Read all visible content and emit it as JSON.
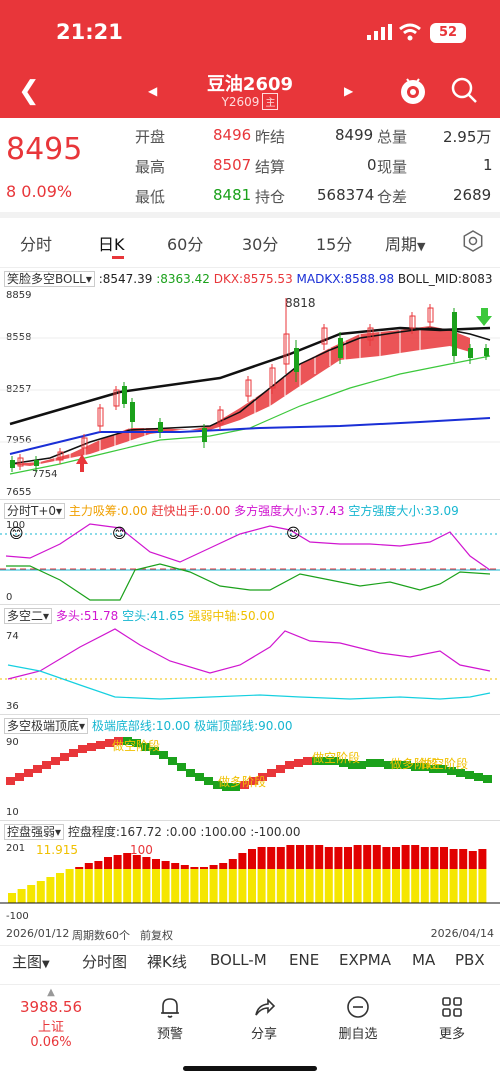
{
  "status": {
    "time": "21:21",
    "battery": "52"
  },
  "header": {
    "title": "豆油2609",
    "code": "Y2609",
    "main_tag": "主"
  },
  "quote": {
    "price": "8495",
    "change": "8 0.09%",
    "rows": [
      {
        "l1": "开盘",
        "v1": "8496",
        "l2": "昨结",
        "v2": "8499",
        "l3": "总量",
        "v3": "2.95万"
      },
      {
        "l1": "最高",
        "v1": "8507",
        "l2": "结算",
        "v2": "0",
        "l3": "现量",
        "v3": "1"
      },
      {
        "l1": "最低",
        "v1": "8481",
        "l2": "持仓",
        "v2": "568374",
        "l3": "仓差",
        "v3": "2689"
      }
    ],
    "colors": {
      "up": "#e8363a",
      "down": "#1ba11b"
    }
  },
  "tabs": [
    "分时",
    "日K",
    "60分",
    "30分",
    "15分",
    "周期"
  ],
  "active_tab": "日K",
  "main_chart": {
    "indicator_name": "笑脸多空BOLL",
    "readouts": [
      ":8547.39",
      ":8363.42",
      "DKX:8575.53",
      "MADKX:8588.98",
      "BOLL_MID:8083"
    ],
    "y_ticks": [
      "8859",
      "8558",
      "8257",
      "7956",
      "7655"
    ],
    "annotations": {
      "high": "8818",
      "low": "7754"
    }
  },
  "panel2": {
    "name": "分时T+0",
    "readouts": [
      "主力吸筹:0.00",
      "赶快出手:0.00",
      "多方强度大小:37.43",
      "空方强度大小:33.09"
    ],
    "y_ticks": [
      "100",
      "0"
    ]
  },
  "panel3": {
    "name": "多空二",
    "readouts": [
      "多头:51.78",
      "空头:41.65",
      "强弱中轴:50.00"
    ],
    "y_ticks": [
      "74",
      "36"
    ]
  },
  "panel4": {
    "name": "多空极端顶底",
    "readouts": [
      "极端底部线:10.00",
      "极端顶部线:90.00"
    ],
    "y_ticks": [
      "90",
      "10"
    ],
    "labels": [
      "做空阶段",
      "做多阶段",
      "做空阶段",
      "做多阶段",
      "做空阶段"
    ]
  },
  "panel5": {
    "name": "控盘强弱",
    "readouts": [
      "控盘程度:167.72",
      ":0.00",
      ":100.00",
      ":-100.00"
    ],
    "y_ticks": [
      "201",
      "-100"
    ],
    "labels": [
      "11.915",
      "100"
    ]
  },
  "footer_info": {
    "start_date": "2026/01/12",
    "period": "周期数60个",
    "adjust": "前复权",
    "end_date": "2026/04/14"
  },
  "indicator_tabs": [
    "主图",
    "分时图",
    "裸K线",
    "BOLL-M",
    "ENE",
    "EXPMA",
    "MA",
    "PBX"
  ],
  "tabbar": {
    "index_value": "3988.56",
    "index_label": "上证 0.06%",
    "items": [
      "预警",
      "分享",
      "删自选",
      "更多"
    ]
  }
}
